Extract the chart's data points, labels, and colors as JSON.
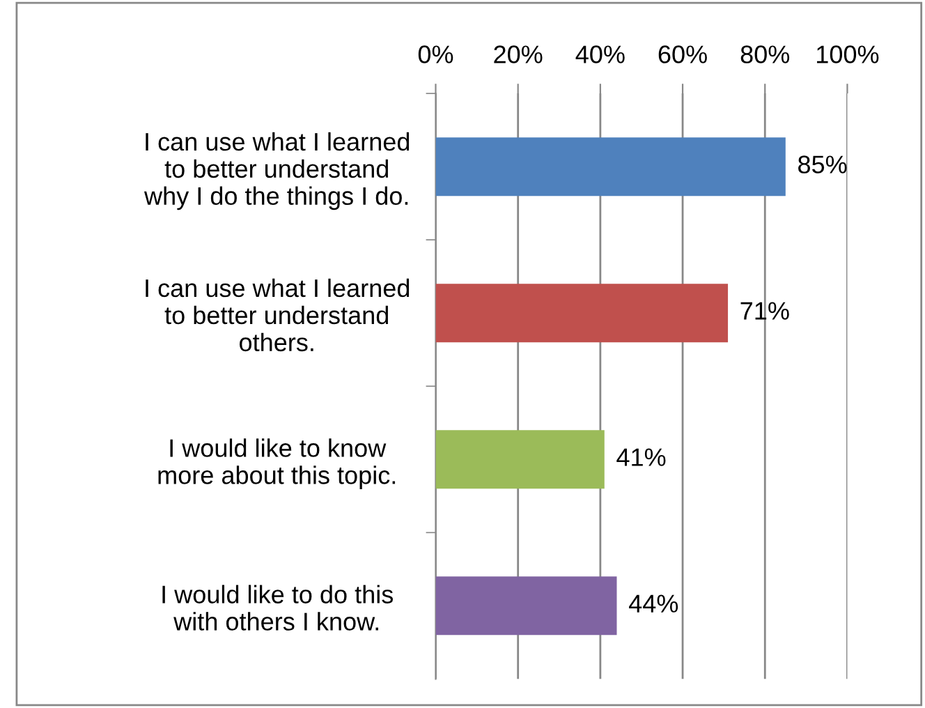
{
  "chart_data": {
    "type": "bar",
    "orientation": "horizontal",
    "categories": [
      "I can use what I learned\nto better understand\nwhy I do the things I do.",
      "I can use what I learned\nto better understand\nothers.",
      "I would like to know\nmore about this topic.",
      "I would like to do this\nwith others I know."
    ],
    "values": [
      85,
      71,
      41,
      44
    ],
    "colors": [
      "#4f81bd",
      "#c0504d",
      "#9bbb59",
      "#8064a2"
    ],
    "value_labels": [
      "85%",
      "71%",
      "41%",
      "44%"
    ],
    "xlim": [
      0,
      100
    ],
    "xticks": [
      {
        "value": 0,
        "label": "0%"
      },
      {
        "value": 20,
        "label": "20%"
      },
      {
        "value": 40,
        "label": "40%"
      },
      {
        "value": 60,
        "label": "60%"
      },
      {
        "value": 80,
        "label": "80%"
      },
      {
        "value": 100,
        "label": "100%"
      }
    ],
    "grid": "x",
    "legend": false
  }
}
